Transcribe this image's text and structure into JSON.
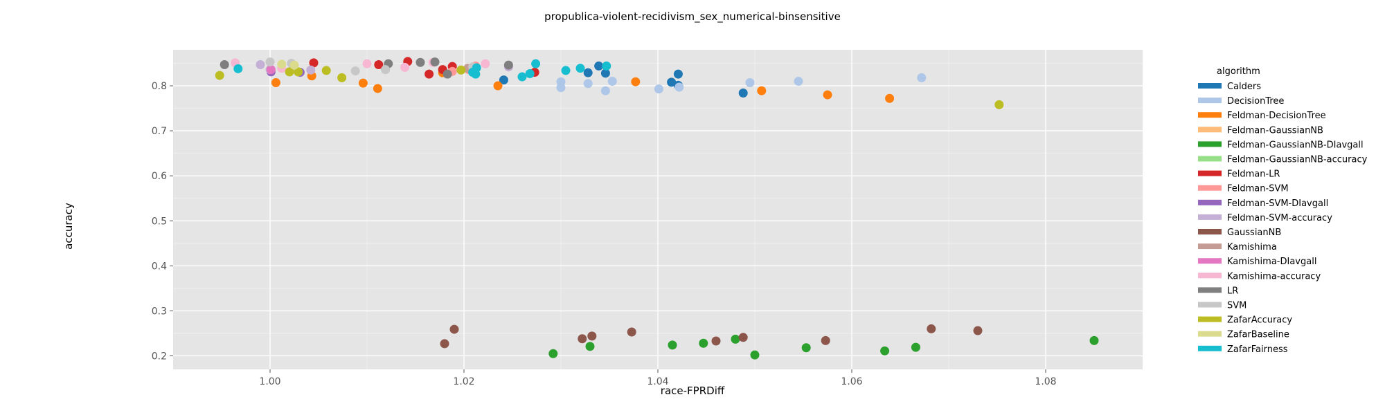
{
  "chart_data": {
    "type": "scatter",
    "title": "propublica-violent-recidivism_sex_numerical-binsensitive",
    "xlabel": "race-FPRDiff",
    "ylabel": "accuracy",
    "xlim": [
      0.99,
      1.09
    ],
    "ylim": [
      0.17,
      0.88
    ],
    "xticks": [
      1.0,
      1.02,
      1.04,
      1.06,
      1.08
    ],
    "xtick_labels": [
      "1.00",
      "1.02",
      "1.04",
      "1.06",
      "1.08"
    ],
    "yticks": [
      0.2,
      0.3,
      0.4,
      0.5,
      0.6,
      0.7,
      0.8
    ],
    "ytick_labels": [
      "0.2",
      "0.3",
      "0.4",
      "0.5",
      "0.6",
      "0.7",
      "0.8"
    ],
    "grid": true,
    "legend": {
      "title": "algorithm",
      "position": "right"
    },
    "series": [
      {
        "name": "Calders",
        "color": "#1f77b4",
        "points": [
          [
            1.0241,
            0.813
          ],
          [
            1.0328,
            0.829
          ],
          [
            1.0339,
            0.844
          ],
          [
            1.0346,
            0.828
          ],
          [
            1.0414,
            0.808
          ],
          [
            1.0421,
            0.826
          ],
          [
            1.0421,
            0.801
          ],
          [
            1.0488,
            0.784
          ]
        ]
      },
      {
        "name": "DecisionTree",
        "color": "#aec7e8",
        "points": [
          [
            1.03,
            0.809
          ],
          [
            1.03,
            0.796
          ],
          [
            1.0328,
            0.805
          ],
          [
            1.0346,
            0.789
          ],
          [
            1.0353,
            0.81
          ],
          [
            1.0401,
            0.793
          ],
          [
            1.0422,
            0.797
          ],
          [
            1.0495,
            0.807
          ],
          [
            1.0545,
            0.81
          ],
          [
            1.0672,
            0.818
          ]
        ]
      },
      {
        "name": "Feldman-DecisionTree",
        "color": "#ff7f0e",
        "points": [
          [
            1.0006,
            0.807
          ],
          [
            1.0043,
            0.822
          ],
          [
            1.0096,
            0.806
          ],
          [
            1.0111,
            0.794
          ],
          [
            1.0178,
            0.829
          ],
          [
            1.0235,
            0.8
          ],
          [
            1.0377,
            0.809
          ],
          [
            1.0507,
            0.789
          ],
          [
            1.0575,
            0.78
          ],
          [
            1.0639,
            0.772
          ]
        ]
      },
      {
        "name": "Feldman-GaussianNB",
        "color": "#ffbb78",
        "points": []
      },
      {
        "name": "Feldman-GaussianNB-DIavgall",
        "color": "#2ca02c",
        "points": [
          [
            1.0292,
            0.205
          ],
          [
            1.033,
            0.221
          ],
          [
            1.0415,
            0.224
          ],
          [
            1.0447,
            0.228
          ],
          [
            1.048,
            0.237
          ],
          [
            1.05,
            0.202
          ],
          [
            1.0553,
            0.218
          ],
          [
            1.0634,
            0.211
          ],
          [
            1.0666,
            0.219
          ],
          [
            1.085,
            0.234
          ]
        ]
      },
      {
        "name": "Feldman-GaussianNB-accuracy",
        "color": "#98df8a",
        "points": []
      },
      {
        "name": "Feldman-LR",
        "color": "#d62728",
        "points": [
          [
            1.0045,
            0.851
          ],
          [
            1.0112,
            0.847
          ],
          [
            1.0142,
            0.854
          ],
          [
            1.0164,
            0.826
          ],
          [
            1.0178,
            0.836
          ],
          [
            1.0188,
            0.843
          ],
          [
            1.0273,
            0.83
          ]
        ]
      },
      {
        "name": "Feldman-SVM",
        "color": "#ff9896",
        "points": [
          [
            1.0188,
            0.832
          ],
          [
            1.0205,
            0.836
          ],
          [
            1.0212,
            0.844
          ]
        ]
      },
      {
        "name": "Feldman-SVM-DIavgall",
        "color": "#9467bd",
        "points": [
          [
            1.0001,
            0.831
          ],
          [
            1.0031,
            0.83
          ]
        ]
      },
      {
        "name": "Feldman-SVM-accuracy",
        "color": "#c5b0d5",
        "points": [
          [
            0.999,
            0.847
          ],
          [
            1.0,
            0.836
          ],
          [
            1.0042,
            0.835
          ],
          [
            1.0246,
            0.842
          ]
        ]
      },
      {
        "name": "GaussianNB",
        "color": "#8c564b",
        "points": [
          [
            1.018,
            0.227
          ],
          [
            1.019,
            0.259
          ],
          [
            1.0322,
            0.238
          ],
          [
            1.0332,
            0.244
          ],
          [
            1.0373,
            0.253
          ],
          [
            1.046,
            0.233
          ],
          [
            1.0488,
            0.241
          ],
          [
            1.0573,
            0.234
          ],
          [
            1.0682,
            0.26
          ],
          [
            1.073,
            0.256
          ]
        ]
      },
      {
        "name": "Kamishima",
        "color": "#c49c94",
        "points": [
          [
            1.0204,
            0.839
          ]
        ]
      },
      {
        "name": "Kamishima-DIavgall",
        "color": "#e377c2",
        "points": [
          [
            1.0001,
            0.836
          ]
        ]
      },
      {
        "name": "Kamishima-accuracy",
        "color": "#f7b6d2",
        "points": [
          [
            0.9964,
            0.851
          ],
          [
            1.0012,
            0.839
          ],
          [
            1.01,
            0.849
          ],
          [
            1.0139,
            0.841
          ],
          [
            1.0168,
            0.852
          ],
          [
            1.0222,
            0.849
          ]
        ]
      },
      {
        "name": "LR",
        "color": "#7f7f7f",
        "points": [
          [
            0.9953,
            0.847
          ],
          [
            1.0122,
            0.849
          ],
          [
            1.0155,
            0.852
          ],
          [
            1.017,
            0.853
          ],
          [
            1.0183,
            0.826
          ],
          [
            1.0246,
            0.846
          ]
        ]
      },
      {
        "name": "SVM",
        "color": "#c7c7c7",
        "points": [
          [
            1.0,
            0.853
          ],
          [
            1.0022,
            0.85
          ],
          [
            1.0088,
            0.833
          ],
          [
            1.0119,
            0.836
          ],
          [
            1.0209,
            0.842
          ]
        ]
      },
      {
        "name": "ZafarAccuracy",
        "color": "#bcbd22",
        "points": [
          [
            0.9948,
            0.823
          ],
          [
            1.002,
            0.831
          ],
          [
            1.0029,
            0.831
          ],
          [
            1.0058,
            0.834
          ],
          [
            1.0074,
            0.818
          ],
          [
            1.0197,
            0.835
          ],
          [
            1.0752,
            0.758
          ]
        ]
      },
      {
        "name": "ZafarBaseline",
        "color": "#dbdb8d",
        "points": [
          [
            1.0012,
            0.848
          ],
          [
            1.0025,
            0.846
          ]
        ]
      },
      {
        "name": "ZafarFairness",
        "color": "#17becf",
        "points": [
          [
            0.9967,
            0.838
          ],
          [
            1.0209,
            0.83
          ],
          [
            1.0212,
            0.826
          ],
          [
            1.0213,
            0.84
          ],
          [
            1.026,
            0.82
          ],
          [
            1.0268,
            0.827
          ],
          [
            1.0274,
            0.849
          ],
          [
            1.0305,
            0.834
          ],
          [
            1.032,
            0.839
          ],
          [
            1.0347,
            0.844
          ]
        ]
      }
    ]
  }
}
